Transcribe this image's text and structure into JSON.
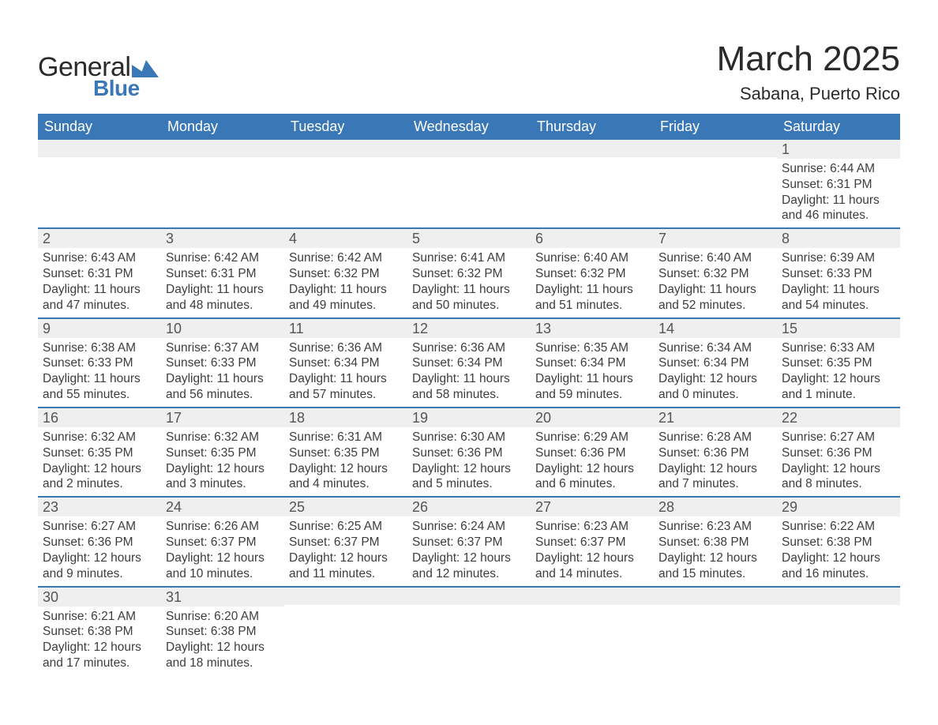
{
  "logo": {
    "text1": "General",
    "text2": "Blue"
  },
  "header": {
    "title": "March 2025",
    "location": "Sabana, Puerto Rico"
  },
  "weekdays": [
    "Sunday",
    "Monday",
    "Tuesday",
    "Wednesday",
    "Thursday",
    "Friday",
    "Saturday"
  ],
  "colors": {
    "header_bg": "#3a77b7",
    "row_separator": "#3a77b7",
    "alt_row_bg": "#efefef",
    "text": "#333333",
    "logo_blue": "#3a77b7"
  },
  "weeks": [
    [
      {
        "n": "",
        "sunrise": "",
        "sunset": "",
        "daylight": ""
      },
      {
        "n": "",
        "sunrise": "",
        "sunset": "",
        "daylight": ""
      },
      {
        "n": "",
        "sunrise": "",
        "sunset": "",
        "daylight": ""
      },
      {
        "n": "",
        "sunrise": "",
        "sunset": "",
        "daylight": ""
      },
      {
        "n": "",
        "sunrise": "",
        "sunset": "",
        "daylight": ""
      },
      {
        "n": "",
        "sunrise": "",
        "sunset": "",
        "daylight": ""
      },
      {
        "n": "1",
        "sunrise": "Sunrise: 6:44 AM",
        "sunset": "Sunset: 6:31 PM",
        "daylight": "Daylight: 11 hours and 46 minutes."
      }
    ],
    [
      {
        "n": "2",
        "sunrise": "Sunrise: 6:43 AM",
        "sunset": "Sunset: 6:31 PM",
        "daylight": "Daylight: 11 hours and 47 minutes."
      },
      {
        "n": "3",
        "sunrise": "Sunrise: 6:42 AM",
        "sunset": "Sunset: 6:31 PM",
        "daylight": "Daylight: 11 hours and 48 minutes."
      },
      {
        "n": "4",
        "sunrise": "Sunrise: 6:42 AM",
        "sunset": "Sunset: 6:32 PM",
        "daylight": "Daylight: 11 hours and 49 minutes."
      },
      {
        "n": "5",
        "sunrise": "Sunrise: 6:41 AM",
        "sunset": "Sunset: 6:32 PM",
        "daylight": "Daylight: 11 hours and 50 minutes."
      },
      {
        "n": "6",
        "sunrise": "Sunrise: 6:40 AM",
        "sunset": "Sunset: 6:32 PM",
        "daylight": "Daylight: 11 hours and 51 minutes."
      },
      {
        "n": "7",
        "sunrise": "Sunrise: 6:40 AM",
        "sunset": "Sunset: 6:32 PM",
        "daylight": "Daylight: 11 hours and 52 minutes."
      },
      {
        "n": "8",
        "sunrise": "Sunrise: 6:39 AM",
        "sunset": "Sunset: 6:33 PM",
        "daylight": "Daylight: 11 hours and 54 minutes."
      }
    ],
    [
      {
        "n": "9",
        "sunrise": "Sunrise: 6:38 AM",
        "sunset": "Sunset: 6:33 PM",
        "daylight": "Daylight: 11 hours and 55 minutes."
      },
      {
        "n": "10",
        "sunrise": "Sunrise: 6:37 AM",
        "sunset": "Sunset: 6:33 PM",
        "daylight": "Daylight: 11 hours and 56 minutes."
      },
      {
        "n": "11",
        "sunrise": "Sunrise: 6:36 AM",
        "sunset": "Sunset: 6:34 PM",
        "daylight": "Daylight: 11 hours and 57 minutes."
      },
      {
        "n": "12",
        "sunrise": "Sunrise: 6:36 AM",
        "sunset": "Sunset: 6:34 PM",
        "daylight": "Daylight: 11 hours and 58 minutes."
      },
      {
        "n": "13",
        "sunrise": "Sunrise: 6:35 AM",
        "sunset": "Sunset: 6:34 PM",
        "daylight": "Daylight: 11 hours and 59 minutes."
      },
      {
        "n": "14",
        "sunrise": "Sunrise: 6:34 AM",
        "sunset": "Sunset: 6:34 PM",
        "daylight": "Daylight: 12 hours and 0 minutes."
      },
      {
        "n": "15",
        "sunrise": "Sunrise: 6:33 AM",
        "sunset": "Sunset: 6:35 PM",
        "daylight": "Daylight: 12 hours and 1 minute."
      }
    ],
    [
      {
        "n": "16",
        "sunrise": "Sunrise: 6:32 AM",
        "sunset": "Sunset: 6:35 PM",
        "daylight": "Daylight: 12 hours and 2 minutes."
      },
      {
        "n": "17",
        "sunrise": "Sunrise: 6:32 AM",
        "sunset": "Sunset: 6:35 PM",
        "daylight": "Daylight: 12 hours and 3 minutes."
      },
      {
        "n": "18",
        "sunrise": "Sunrise: 6:31 AM",
        "sunset": "Sunset: 6:35 PM",
        "daylight": "Daylight: 12 hours and 4 minutes."
      },
      {
        "n": "19",
        "sunrise": "Sunrise: 6:30 AM",
        "sunset": "Sunset: 6:36 PM",
        "daylight": "Daylight: 12 hours and 5 minutes."
      },
      {
        "n": "20",
        "sunrise": "Sunrise: 6:29 AM",
        "sunset": "Sunset: 6:36 PM",
        "daylight": "Daylight: 12 hours and 6 minutes."
      },
      {
        "n": "21",
        "sunrise": "Sunrise: 6:28 AM",
        "sunset": "Sunset: 6:36 PM",
        "daylight": "Daylight: 12 hours and 7 minutes."
      },
      {
        "n": "22",
        "sunrise": "Sunrise: 6:27 AM",
        "sunset": "Sunset: 6:36 PM",
        "daylight": "Daylight: 12 hours and 8 minutes."
      }
    ],
    [
      {
        "n": "23",
        "sunrise": "Sunrise: 6:27 AM",
        "sunset": "Sunset: 6:36 PM",
        "daylight": "Daylight: 12 hours and 9 minutes."
      },
      {
        "n": "24",
        "sunrise": "Sunrise: 6:26 AM",
        "sunset": "Sunset: 6:37 PM",
        "daylight": "Daylight: 12 hours and 10 minutes."
      },
      {
        "n": "25",
        "sunrise": "Sunrise: 6:25 AM",
        "sunset": "Sunset: 6:37 PM",
        "daylight": "Daylight: 12 hours and 11 minutes."
      },
      {
        "n": "26",
        "sunrise": "Sunrise: 6:24 AM",
        "sunset": "Sunset: 6:37 PM",
        "daylight": "Daylight: 12 hours and 12 minutes."
      },
      {
        "n": "27",
        "sunrise": "Sunrise: 6:23 AM",
        "sunset": "Sunset: 6:37 PM",
        "daylight": "Daylight: 12 hours and 14 minutes."
      },
      {
        "n": "28",
        "sunrise": "Sunrise: 6:23 AM",
        "sunset": "Sunset: 6:38 PM",
        "daylight": "Daylight: 12 hours and 15 minutes."
      },
      {
        "n": "29",
        "sunrise": "Sunrise: 6:22 AM",
        "sunset": "Sunset: 6:38 PM",
        "daylight": "Daylight: 12 hours and 16 minutes."
      }
    ],
    [
      {
        "n": "30",
        "sunrise": "Sunrise: 6:21 AM",
        "sunset": "Sunset: 6:38 PM",
        "daylight": "Daylight: 12 hours and 17 minutes."
      },
      {
        "n": "31",
        "sunrise": "Sunrise: 6:20 AM",
        "sunset": "Sunset: 6:38 PM",
        "daylight": "Daylight: 12 hours and 18 minutes."
      },
      {
        "n": "",
        "sunrise": "",
        "sunset": "",
        "daylight": ""
      },
      {
        "n": "",
        "sunrise": "",
        "sunset": "",
        "daylight": ""
      },
      {
        "n": "",
        "sunrise": "",
        "sunset": "",
        "daylight": ""
      },
      {
        "n": "",
        "sunrise": "",
        "sunset": "",
        "daylight": ""
      },
      {
        "n": "",
        "sunrise": "",
        "sunset": "",
        "daylight": ""
      }
    ]
  ]
}
